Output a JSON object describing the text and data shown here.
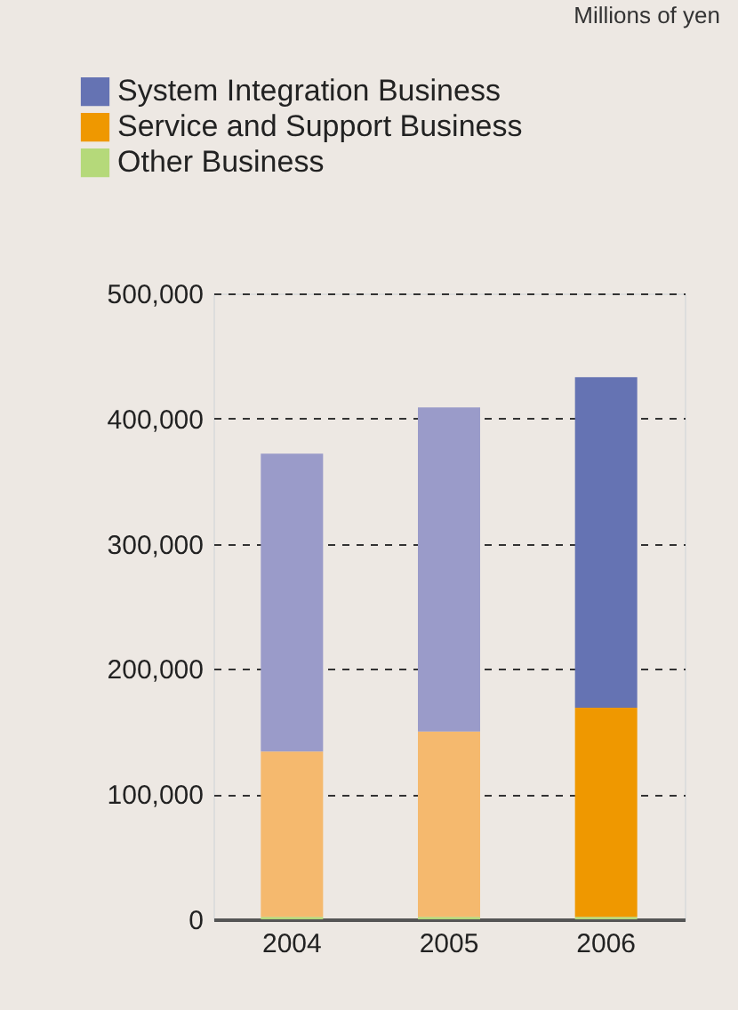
{
  "chart_data": {
    "type": "bar",
    "stacked": true,
    "categories": [
      "2004",
      "2005",
      "2006"
    ],
    "series": [
      {
        "name": "Other Business",
        "color": "#b5d97a",
        "colors": [
          "#b5d97a",
          "#b5d97a",
          "#b5d97a"
        ],
        "values": [
          2000,
          2000,
          2000
        ]
      },
      {
        "name": "Service and Support Business",
        "color": "#ef9800",
        "colors": [
          "#f5b96e",
          "#f5b96e",
          "#ef9800"
        ],
        "values": [
          132000,
          148000,
          167000
        ]
      },
      {
        "name": "System Integration Business",
        "color": "#6573b3",
        "colors": [
          "#9a9bc9",
          "#9a9bc9",
          "#6573b3"
        ],
        "values": [
          238000,
          259000,
          264000
        ]
      }
    ],
    "ylim": [
      0,
      500000
    ],
    "yticks": [
      0,
      {
        "value": 100000,
        "label": "100,000"
      },
      {
        "value": 200000,
        "label": "200,000"
      },
      {
        "value": 300000,
        "label": "300,000"
      },
      {
        "value": 400000,
        "label": "400,000"
      },
      {
        "value": 500000,
        "label": "500,000"
      }
    ],
    "grid": "y",
    "legend": "top left",
    "annotations": [
      "Millions of yen"
    ]
  }
}
